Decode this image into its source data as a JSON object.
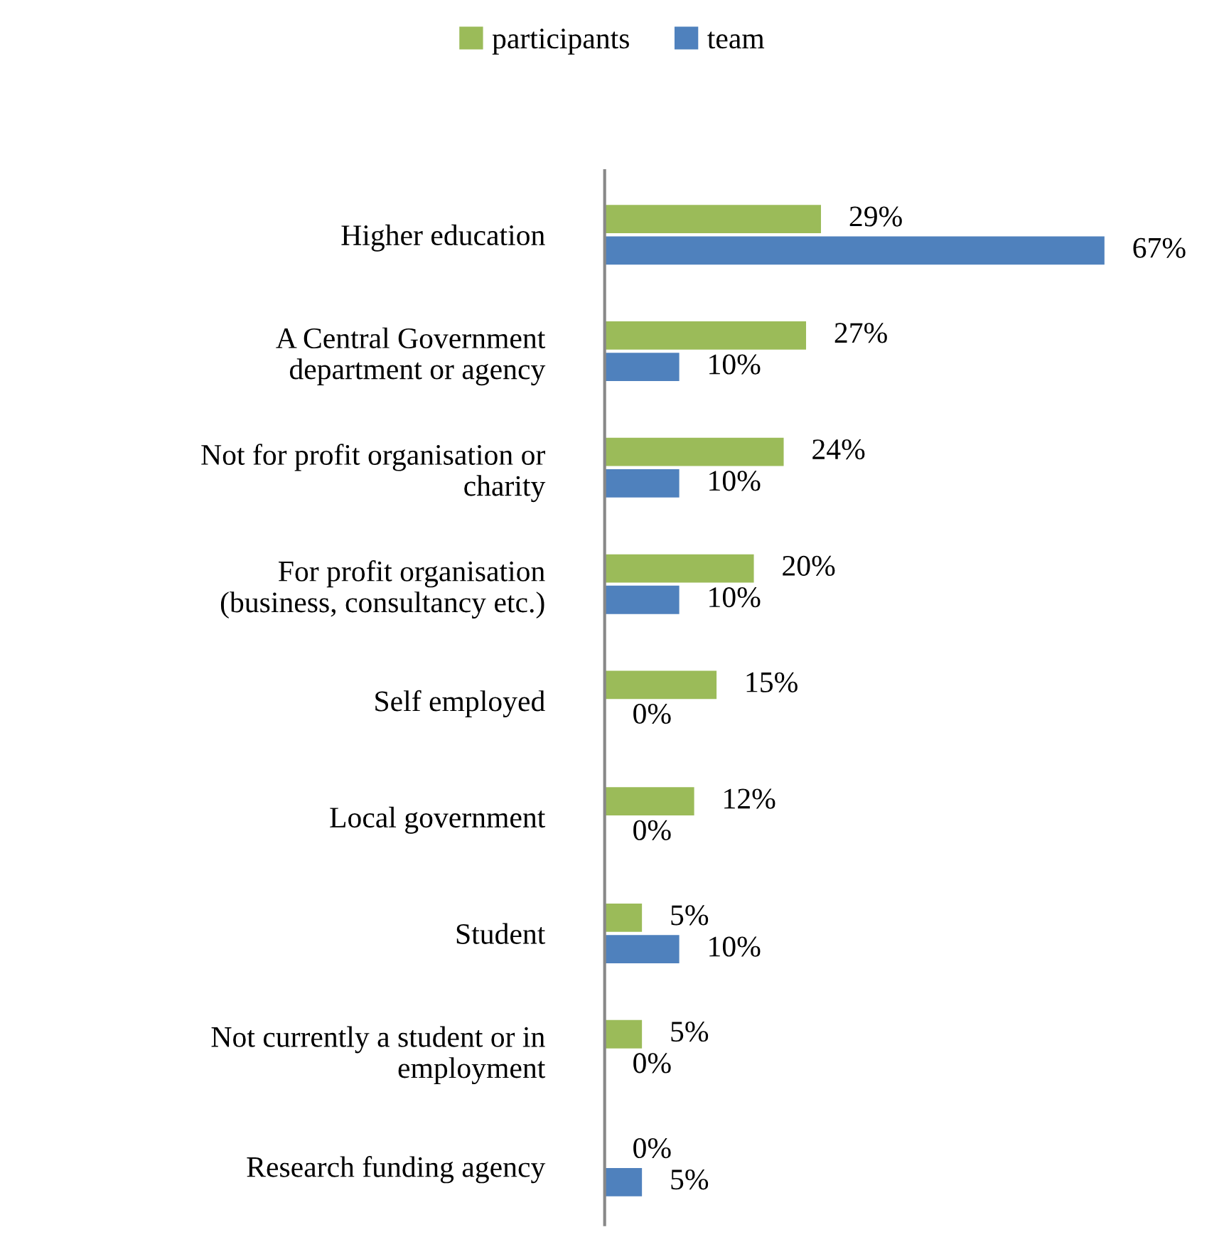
{
  "chart_data": {
    "type": "bar",
    "orientation": "horizontal",
    "legend": "top",
    "grid": false,
    "categories": [
      "Higher education",
      "A Central Government\ndepartment or agency",
      "Not for profit organisation or\ncharity",
      "For profit organisation\n(business, consultancy etc.)",
      "Self employed",
      "Local government",
      "Student",
      "Not currently a student or in\nemployment",
      "Research funding agency"
    ],
    "series": [
      {
        "name": "participants",
        "color": "#9bbb59",
        "values": [
          29,
          27,
          24,
          20,
          15,
          12,
          5,
          5,
          0
        ],
        "value_labels": [
          "29%",
          "27%",
          "24%",
          "20%",
          "15%",
          "12%",
          "5%",
          "5%",
          "0%"
        ]
      },
      {
        "name": "team",
        "color": "#4f81bd",
        "values": [
          67,
          10,
          10,
          10,
          0,
          0,
          10,
          0,
          5
        ],
        "value_labels": [
          "67%",
          "10%",
          "10%",
          "10%",
          "0%",
          "0%",
          "10%",
          "0%",
          "5%"
        ]
      }
    ]
  }
}
